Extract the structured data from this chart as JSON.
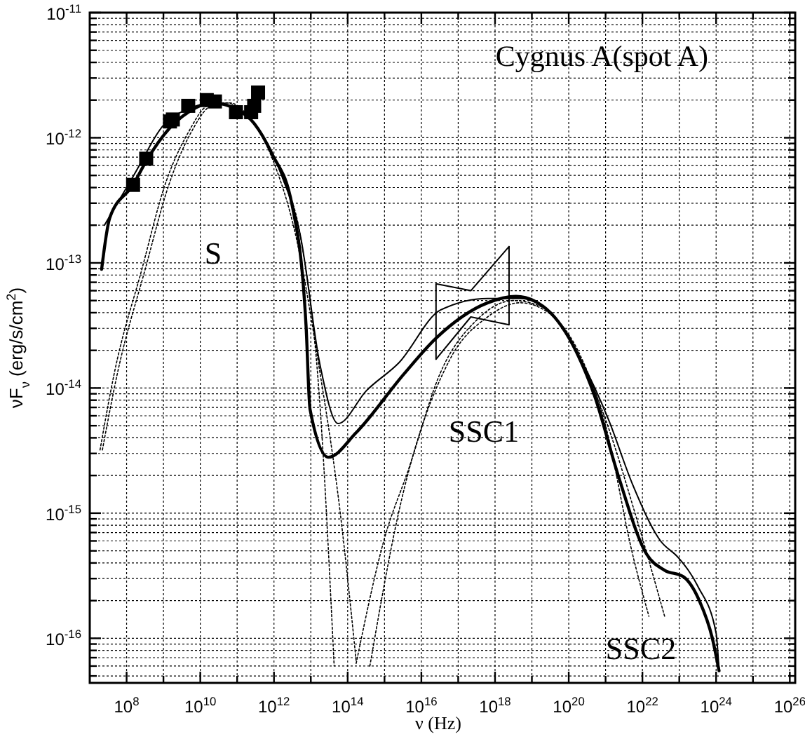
{
  "chart_data": {
    "type": "line",
    "xlabel": "ν (Hz)",
    "ylabel": "νF$_{ν}$ (erg/s/cm$^{2}$)",
    "log": "xy",
    "grid": true,
    "marker": "none",
    "line_style": "solid",
    "xlim": [
      10000000.0,
      1.4e+26
    ],
    "ylim": [
      4.4e-17,
      1e-11
    ],
    "xticks": [
      {
        "value": 100000000.0,
        "label": "10$^{8}$"
      },
      {
        "value": 1000000000.0,
        "label": null
      },
      {
        "value": 10000000000.0,
        "label": "10$^{10}$"
      },
      {
        "value": 100000000000.0,
        "label": null
      },
      {
        "value": 1000000000000.0,
        "label": "10$^{12}$"
      },
      {
        "value": 10000000000000.0,
        "label": null
      },
      {
        "value": 100000000000000.0,
        "label": "10$^{14}$"
      },
      {
        "value": 1000000000000000.0,
        "label": null
      },
      {
        "value": 1e+16,
        "label": "10$^{16}$"
      },
      {
        "value": 1e+17,
        "label": null
      },
      {
        "value": 1e+18,
        "label": "10$^{18}$"
      },
      {
        "value": 1e+19,
        "label": null
      },
      {
        "value": 1e+20,
        "label": "10$^{20}$"
      },
      {
        "value": 1e+21,
        "label": null
      },
      {
        "value": 1e+22,
        "label": "10$^{22}$"
      },
      {
        "value": 1e+23,
        "label": null
      },
      {
        "value": 1e+24,
        "label": "10$^{24}$"
      },
      {
        "value": 1e+25,
        "label": null
      },
      {
        "value": 1e+26,
        "label": "10$^{26}$"
      }
    ],
    "yticks": [
      {
        "value": 5e-17,
        "label": null
      },
      {
        "value": 6e-17,
        "label": null
      },
      {
        "value": 7e-17,
        "label": null
      },
      {
        "value": 8e-17,
        "label": null
      },
      {
        "value": 9e-17,
        "label": null
      },
      {
        "value": 1e-16,
        "label": "10$^{-16}$"
      },
      {
        "value": 2e-16,
        "label": null
      },
      {
        "value": 3e-16,
        "label": null
      },
      {
        "value": 4e-16,
        "label": null
      },
      {
        "value": 5e-16,
        "label": null
      },
      {
        "value": 6e-16,
        "label": null
      },
      {
        "value": 7e-16,
        "label": null
      },
      {
        "value": 8e-16,
        "label": null
      },
      {
        "value": 9e-16,
        "label": null
      },
      {
        "value": 1e-15,
        "label": "10$^{-15}$"
      },
      {
        "value": 2e-15,
        "label": null
      },
      {
        "value": 3e-15,
        "label": null
      },
      {
        "value": 4e-15,
        "label": null
      },
      {
        "value": 5e-15,
        "label": null
      },
      {
        "value": 6e-15,
        "label": null
      },
      {
        "value": 7e-15,
        "label": null
      },
      {
        "value": 8e-15,
        "label": null
      },
      {
        "value": 9e-15,
        "label": null
      },
      {
        "value": 1e-14,
        "label": "10$^{-14}$"
      },
      {
        "value": 2e-14,
        "label": null
      },
      {
        "value": 3e-14,
        "label": null
      },
      {
        "value": 4e-14,
        "label": null
      },
      {
        "value": 5e-14,
        "label": null
      },
      {
        "value": 6e-14,
        "label": null
      },
      {
        "value": 7e-14,
        "label": null
      },
      {
        "value": 8e-14,
        "label": null
      },
      {
        "value": 9e-14,
        "label": null
      },
      {
        "value": 1e-13,
        "label": "10$^{-13}$"
      },
      {
        "value": 2e-13,
        "label": null
      },
      {
        "value": 3e-13,
        "label": null
      },
      {
        "value": 4e-13,
        "label": null
      },
      {
        "value": 5e-13,
        "label": null
      },
      {
        "value": 6e-13,
        "label": null
      },
      {
        "value": 7e-13,
        "label": null
      },
      {
        "value": 8e-13,
        "label": null
      },
      {
        "value": 9e-13,
        "label": null
      },
      {
        "value": 1e-12,
        "label": "10$^{-12}$"
      },
      {
        "value": 2e-12,
        "label": null
      },
      {
        "value": 3e-12,
        "label": null
      },
      {
        "value": 4e-12,
        "label": null
      },
      {
        "value": 5e-12,
        "label": null
      },
      {
        "value": 6e-12,
        "label": null
      },
      {
        "value": 7e-12,
        "label": null
      },
      {
        "value": 8e-12,
        "label": null
      },
      {
        "value": 9e-12,
        "label": null
      },
      {
        "value": 1e-11,
        "label": "10$^{-11}$"
      }
    ],
    "series": [
      {
        "color": "#000000",
        "x": [
          21000000.0,
          35000000.0,
          150000000.0,
          340000000.0,
          1500000000.0,
          4700000000.0,
          21000000000.0,
          93000000000.0,
          290000000000.0,
          890000000000.0,
          3100000000000.0,
          7400000000000.0,
          9500000000000.0,
          30000000000000.0,
          170000000000000.0,
          3400000000000000.0,
          2.5e+16,
          6.3e+17,
          3.7e+18,
          2e+19,
          1.3e+20,
          5e+20,
          2.2e+21,
          1.3e+22,
          4e+22,
          1.3e+23,
          3.5e+23,
          7.9e+23,
          1.2e+24
        ],
        "values": [
          8.9e-14,
          2.3e-13,
          4.2e-13,
          6.5e-13,
          1.2e-12,
          1.6e-12,
          1.9e-12,
          1.7e-12,
          1.3e-12,
          7.4e-13,
          2.9e-13,
          3.2e-14,
          6.8e-15,
          2.8e-15,
          4.4e-15,
          1.3e-14,
          2.5e-14,
          4.8e-14,
          5.4e-14,
          4.5e-14,
          2.2e-14,
          8.7e-15,
          2e-15,
          4.7e-16,
          3.5e-16,
          3.1e-16,
          2e-16,
          1e-16,
          5.5e-17
        ]
      },
      {
        "color": "#000000",
        "x": [
          25000000.0,
          150000000.0,
          1100000000.0,
          4700000000.0,
          21000000000.0,
          150000000000.0,
          540000000000.0,
          1700000000000.0,
          5100000000000.0,
          18000000000000.0,
          55000000000000.0,
          320000000000000.0,
          2500000000000000.0,
          3.3e+16,
          6.3e+17,
          4.8e+18,
          2.8e+19,
          2.1e+20,
          1.2e+21,
          5.4e+21,
          3.1e+22,
          9.5e+22,
          3.2e+23,
          1e+24,
          1.2e+24
        ],
        "values": [
          2e-13,
          4.9e-13,
          1.3e-12,
          1.7e-12,
          1.9e-12,
          1.6e-12,
          1e-12,
          4.8e-13,
          1.7e-13,
          1.5e-14,
          5.2e-15,
          9.5e-15,
          1.6e-14,
          4.2e-14,
          5.2e-14,
          5.2e-14,
          4.2e-14,
          1.7e-14,
          5.6e-15,
          1.7e-15,
          6e-16,
          4.4e-16,
          2.6e-16,
          1.1e-16,
          5.5e-17
        ]
      },
      {
        "type": "line",
        "color": "#000000",
        "line_style": "dotted",
        "x": [
          19000000.0,
          46000000.0,
          260000000.0,
          1100000000.0,
          4700000000.0,
          16000000000.0,
          50000000000.0,
          150000000000.0,
          540000000000.0,
          1700000000000.0,
          5100000000000.0,
          18000000000000.0,
          43000000000000.0
        ],
        "values": [
          3.2e-15,
          1.3e-14,
          8.9e-14,
          4.2e-13,
          1.1e-12,
          1.8e-12,
          1.9e-12,
          1.6e-12,
          1e-12,
          4.8e-13,
          1.7e-13,
          6.8e-15,
          6e-17
        ]
      },
      {
        "type": "line",
        "color": "#000000",
        "line_style": "dotted",
        "x": [
          22000000.0,
          56000000.0,
          320000000.0,
          1400000000.0,
          5600000000.0,
          20000000000.0,
          63000000000.0,
          200000000000.0,
          1000000000000.0,
          4000000000000.0,
          16000000000000.0,
          63000000000000.0,
          170000000000000.0
        ],
        "values": [
          3.2e-15,
          1.3e-14,
          8.9e-14,
          4.2e-13,
          1.1e-12,
          1.8e-12,
          1.9e-12,
          1.5e-12,
          6.3e-13,
          1.6e-13,
          1.6e-14,
          1e-15,
          6.6e-17
        ]
      },
      {
        "type": "line",
        "color": "#000000",
        "line_style": "dotted",
        "x": [
          400000000000000.0,
          2400000000000000.0,
          6e+16,
          6.3e+17,
          4.8e+18,
          2.8e+19,
          2.1e+20,
          1e+21,
          5.4e+21,
          1.5e+22
        ],
        "values": [
          6e-17,
          1e-15,
          1.7e-14,
          3.7e-14,
          4.8e-14,
          4e-14,
          1.8e-14,
          5e-15,
          4.7e-16,
          1.5e-16
        ]
      },
      {
        "type": "line",
        "color": "#000000",
        "line_style": "dotted",
        "x": [
          170000000000000.0,
          1000000000000000.0,
          4400000000000000.0,
          3.2e+16,
          3.2e+17,
          3.2e+18,
          2e+19,
          1.6e+20,
          1e+21,
          6.3e+21,
          4e+22
        ],
        "values": [
          6.3e-17,
          6.3e-16,
          2.2e-15,
          1.3e-14,
          3.5e-14,
          5e-14,
          4.4e-14,
          2e-14,
          5.6e-15,
          1e-15,
          1.5e-16
        ]
      },
      {
        "color": "#000000",
        "x": [
          2.5e+16,
          2.5e+16,
          2.2e+17,
          2.4e+18
        ],
        "values": [
          1.7e-14,
          6.8e-14,
          6e-14,
          1.35e-13
        ]
      },
      {
        "color": "#000000",
        "x": [
          2.5e+16,
          2.2e+17,
          2.4e+18,
          2.4e+18
        ],
        "values": [
          1.7e-14,
          3.7e-14,
          3.2e-14,
          1.35e-13
        ]
      },
      {
        "type": "scatter",
        "color": "#000000",
        "marker": "square",
        "x": [
          150000000.0,
          340000000.0,
          1500000000.0,
          1800000000.0,
          4700000000.0,
          15000000000.0,
          25000000000.0,
          93000000000.0,
          240000000000.0,
          290000000000.0,
          370000000000.0
        ],
        "values": [
          4.2e-13,
          6.8e-13,
          1.35e-12,
          1.4e-12,
          1.8e-12,
          2e-12,
          1.95e-12,
          1.6e-12,
          1.6e-12,
          1.8e-12,
          2.3e-12
        ]
      }
    ],
    "annotations": [
      "Cygnus A(spot A)",
      "S",
      "SSC1",
      "SSC2"
    ]
  }
}
